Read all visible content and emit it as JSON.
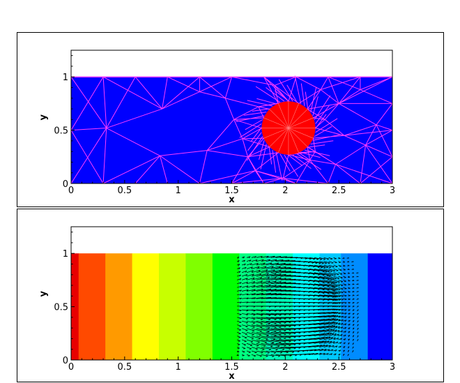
{
  "chart_data": [
    {
      "type": "mesh-contour",
      "xlabel": "x",
      "ylabel": "y",
      "xlim": [
        0,
        3
      ],
      "ylim": [
        0,
        1.25
      ],
      "domain_height": 1,
      "x_ticks": [
        "0",
        "0.5",
        "1",
        "1.5",
        "2",
        "2.5",
        "3"
      ],
      "y_ticks": [
        "0",
        "0.5",
        "1"
      ],
      "fluid_color": "#0000ff",
      "mesh_color": "#ff3cff",
      "particle": {
        "cx": 2.03,
        "cy": 0.52,
        "r": 0.25,
        "color": "#ff0000"
      },
      "mesh_nodes": [
        [
          0.33,
          0.52
        ],
        [
          0.85,
          0.7
        ],
        [
          0.83,
          0.26
        ],
        [
          1.2,
          0.86
        ],
        [
          1.27,
          0.31
        ],
        [
          1.44,
          0.8
        ],
        [
          1.52,
          0.6
        ],
        [
          1.6,
          0.42
        ],
        [
          1.72,
          0.12
        ],
        [
          1.9,
          0.92
        ],
        [
          2.33,
          0.88
        ],
        [
          2.5,
          0.75
        ],
        [
          2.7,
          0.88
        ],
        [
          2.55,
          0.45
        ],
        [
          2.75,
          0.36
        ],
        [
          2.47,
          0.18
        ],
        [
          2.23,
          0.22
        ],
        [
          1.75,
          0.72
        ],
        [
          2.37,
          0.6
        ],
        [
          1.65,
          0.25
        ],
        [
          2.28,
          0.3
        ],
        [
          1.98,
          0.05
        ],
        [
          2.85,
          0.55
        ]
      ]
    },
    {
      "type": "contour-vector",
      "xlabel": "x",
      "ylabel": "y",
      "xlim": [
        0,
        3
      ],
      "ylim": [
        0,
        1.25
      ],
      "domain_height": 1,
      "x_ticks": [
        "0",
        "0.5",
        "1",
        "1.5",
        "2",
        "2.5",
        "3"
      ],
      "y_ticks": [
        "0",
        "0.5",
        "1"
      ],
      "color_bands": [
        {
          "x0": 0.0,
          "x1": 0.07,
          "color": "#e80000"
        },
        {
          "x0": 0.07,
          "x1": 0.32,
          "color": "#ff4a00"
        },
        {
          "x0": 0.32,
          "x1": 0.57,
          "color": "#ff9a00"
        },
        {
          "x0": 0.57,
          "x1": 0.82,
          "color": "#ffff00"
        },
        {
          "x0": 0.82,
          "x1": 1.07,
          "color": "#c8ff00"
        },
        {
          "x0": 1.07,
          "x1": 1.32,
          "color": "#80ff00"
        },
        {
          "x0": 1.32,
          "x1": 1.57,
          "color": "#00ff00"
        },
        {
          "x0": 1.57,
          "x1": 1.82,
          "color": "#00ff80"
        },
        {
          "x0": 1.82,
          "x1": 2.07,
          "color": "#00ffb8"
        },
        {
          "x0": 2.07,
          "x1": 2.32,
          "color": "#00ffff"
        },
        {
          "x0": 2.32,
          "x1": 2.52,
          "color": "#00c8ff"
        },
        {
          "x0": 2.52,
          "x1": 2.77,
          "color": "#008cff"
        },
        {
          "x0": 2.77,
          "x1": 3.0,
          "color": "#0000ff"
        }
      ],
      "vector_color": "#000000",
      "vortex_centers": [
        [
          2.03,
          0.72
        ],
        [
          2.03,
          0.52
        ],
        [
          2.03,
          0.3
        ]
      ]
    }
  ]
}
